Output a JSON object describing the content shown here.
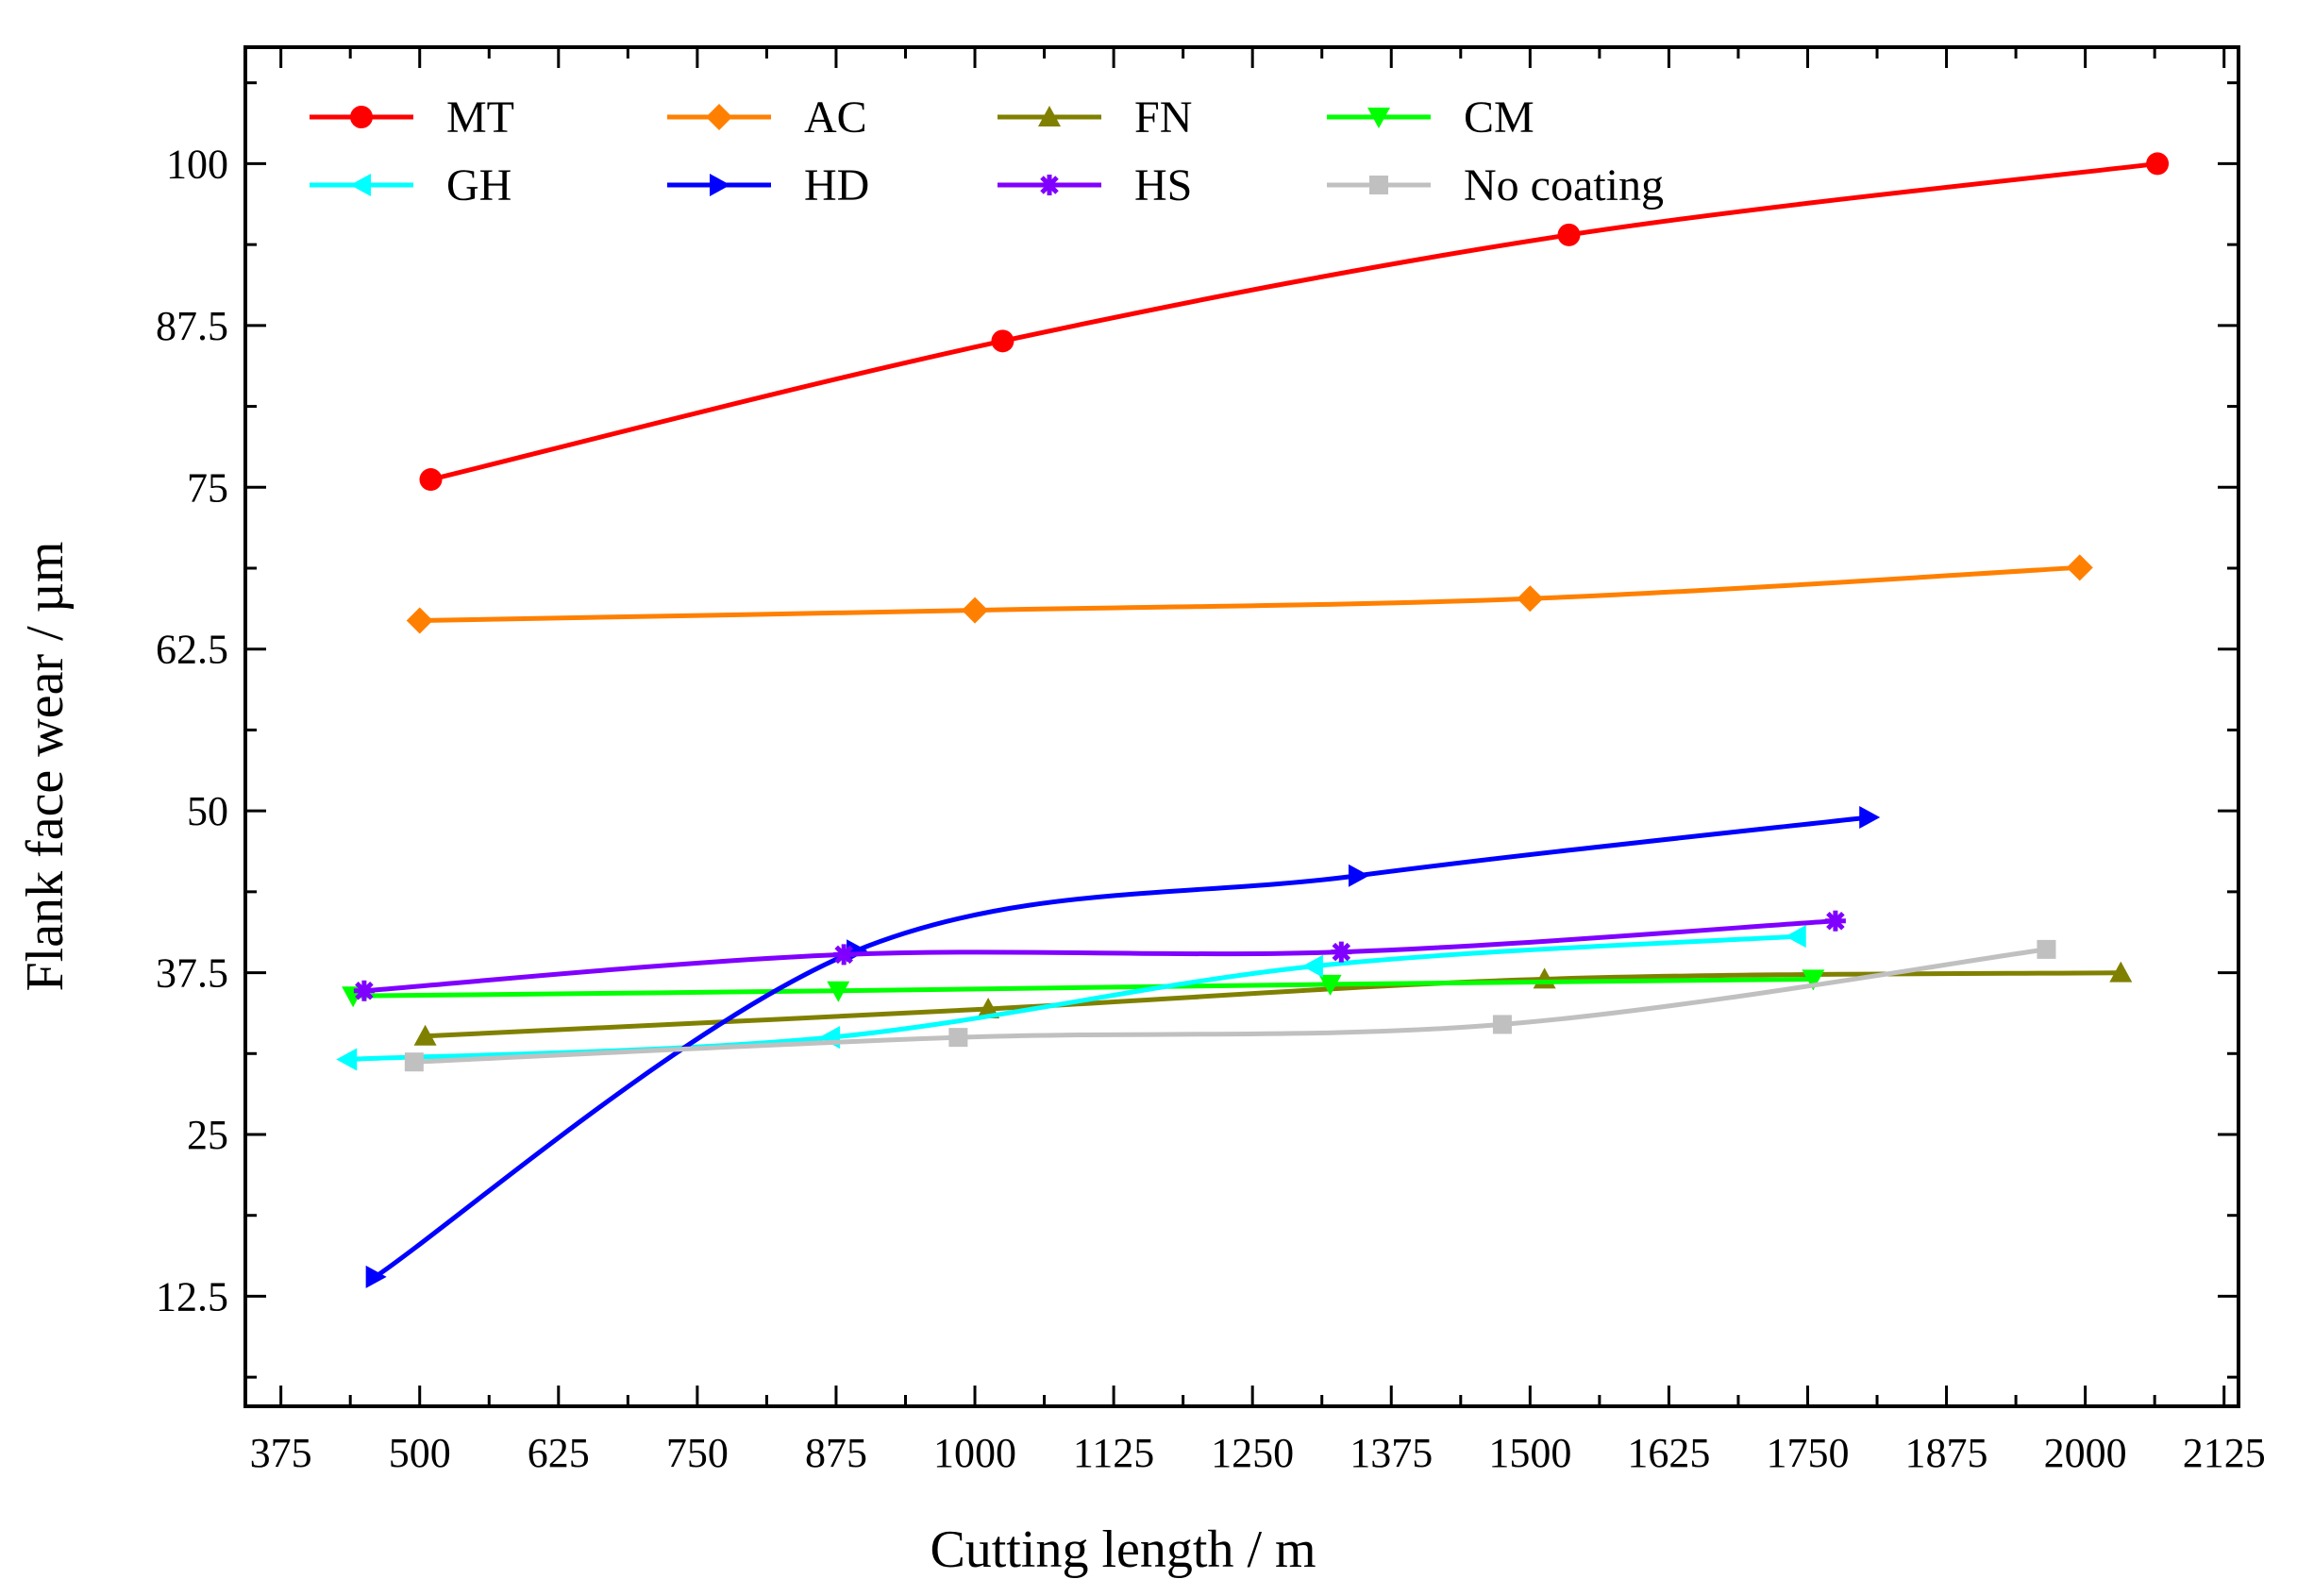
{
  "chart_data": {
    "type": "line",
    "title": "",
    "xlabel": "Cutting length / m",
    "ylabel": "Flank face wear / µm",
    "xlim": [
      343,
      2138
    ],
    "ylim": [
      4,
      109
    ],
    "x_ticks": [
      "375",
      "500",
      "625",
      "750",
      "875",
      "1000",
      "1125",
      "1250",
      "1375",
      "1500",
      "1625",
      "1750",
      "1875",
      "2000",
      "2125"
    ],
    "y_ticks": [
      "12.5",
      "25",
      "37.5",
      "50",
      "62.5",
      "75",
      "87.5",
      "100"
    ],
    "legend_position": "top-left",
    "series": [
      {
        "name": "MT",
        "color": "#ff0000",
        "marker": "circle",
        "x": [
          510,
          1025,
          1535,
          2065
        ],
        "y": [
          75.6,
          86.3,
          94.5,
          100.0
        ]
      },
      {
        "name": "AC",
        "color": "#ff8000",
        "marker": "diamond",
        "x": [
          500,
          1000,
          1500,
          1995
        ],
        "y": [
          64.7,
          65.5,
          66.4,
          68.8
        ]
      },
      {
        "name": "FN",
        "color": "#808000",
        "marker": "triangle-up",
        "x": [
          505,
          1012,
          1513,
          2032
        ],
        "y": [
          32.6,
          34.7,
          37.0,
          37.5
        ]
      },
      {
        "name": "CM",
        "color": "#00ff00",
        "marker": "triangle-down",
        "x": [
          440,
          877,
          1320,
          1755
        ],
        "y": [
          35.7,
          36.1,
          36.6,
          37.0
        ]
      },
      {
        "name": "GH",
        "color": "#00ffff",
        "marker": "triangle-left",
        "x": [
          435,
          870,
          1305,
          1740
        ],
        "y": [
          30.8,
          32.5,
          38.0,
          40.3
        ]
      },
      {
        "name": "HD",
        "color": "#0000ff",
        "marker": "triangle-right",
        "x": [
          460,
          893,
          1345,
          1805
        ],
        "y": [
          14.0,
          39.2,
          45.0,
          49.5
        ]
      },
      {
        "name": "HS",
        "color": "#8000ff",
        "marker": "asterisk",
        "x": [
          450,
          882,
          1330,
          1775
        ],
        "y": [
          36.1,
          38.9,
          39.1,
          41.5
        ]
      },
      {
        "name": "No coating",
        "color": "#c0c0c0",
        "marker": "square",
        "x": [
          495,
          985,
          1475,
          1965
        ],
        "y": [
          30.6,
          32.5,
          33.5,
          39.3
        ]
      }
    ]
  }
}
